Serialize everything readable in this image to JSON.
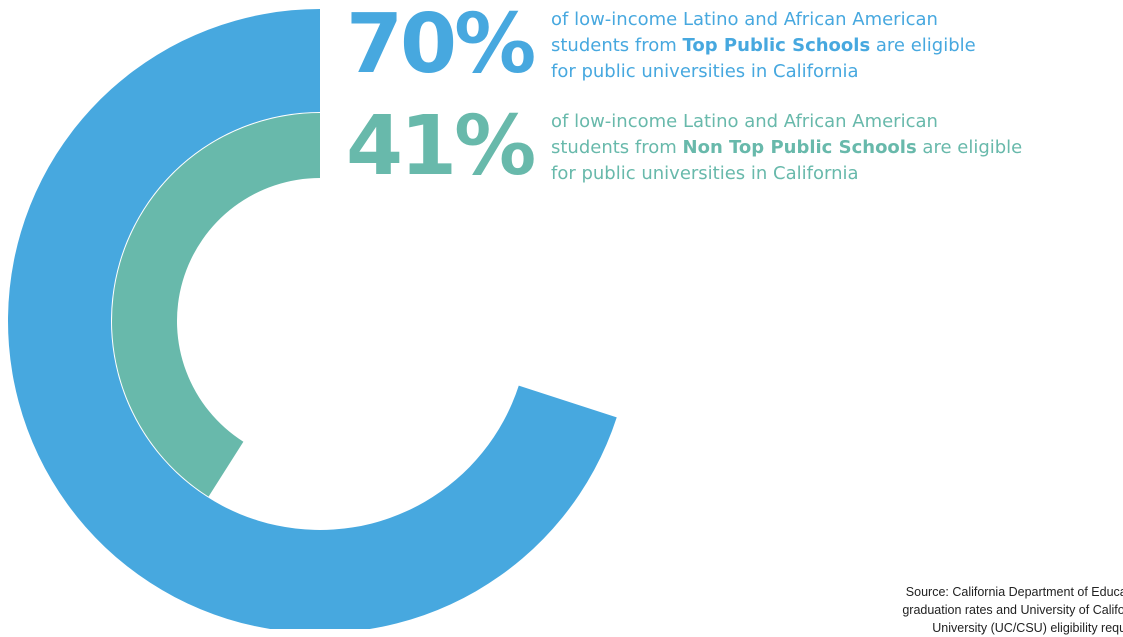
{
  "chart_data": {
    "type": "donut",
    "series": [
      {
        "value": 70,
        "value_label": "70%",
        "color": "#47a8df",
        "text_pre": "of low-income Latino and African American students from ",
        "text_bold": "Top Public Schools",
        "text_post": " are eligible for public universities in California",
        "line1": "of low-income Latino and African American",
        "line2_pre": "students from ",
        "line2_bold": "Top Public Schools",
        "line2_post": " are eligible",
        "line3": "for public universities in California"
      },
      {
        "value": 41,
        "value_label": "41%",
        "color": "#68b9ab",
        "text_pre": "of low-income Latino and African American students from ",
        "text_bold": "Non Top Public Schools",
        "text_post": " are eligible for public universities in California",
        "line1": "of low-income Latino and African American",
        "line2_pre": "students from ",
        "line2_bold": "Non Top Public Schools",
        "line2_post": " are eligible",
        "line3": "for public universities in California"
      }
    ],
    "start": "top",
    "direction": "counter-clockwise",
    "max": 100
  },
  "source": {
    "line1": "Source: California Department of Educati",
    "line2": "graduation rates and University of Califorr",
    "line3": "University (UC/CSU) eligibility requir"
  }
}
